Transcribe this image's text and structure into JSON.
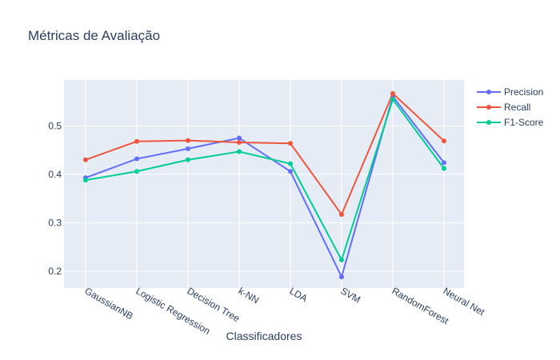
{
  "chart_data": {
    "type": "line",
    "title": "Métricas de Avaliação",
    "xlabel": "Classificadores",
    "ylabel": "",
    "categories": [
      "GaussianNB",
      "Logistic Regression",
      "Decision Tree",
      "k-NN",
      "LDA",
      "SVM",
      "RandomForest",
      "Neural Net"
    ],
    "ylim": [
      0.165,
      0.595
    ],
    "yticks": [
      0.2,
      0.3,
      0.4,
      0.5
    ],
    "ytick_labels": [
      "0.2",
      "0.3",
      "0.4",
      "0.5"
    ],
    "grid": true,
    "legend_position": "top-right",
    "series": [
      {
        "name": "Precision",
        "color": "#636efa",
        "values": [
          0.393,
          0.432,
          0.453,
          0.475,
          0.406,
          0.188,
          0.561,
          0.424
        ]
      },
      {
        "name": "Recall",
        "color": "#ef553b",
        "values": [
          0.43,
          0.468,
          0.47,
          0.466,
          0.464,
          0.317,
          0.567,
          0.469
        ]
      },
      {
        "name": "F1-Score",
        "color": "#00cc96",
        "values": [
          0.388,
          0.406,
          0.43,
          0.447,
          0.422,
          0.223,
          0.555,
          0.412
        ]
      }
    ]
  }
}
